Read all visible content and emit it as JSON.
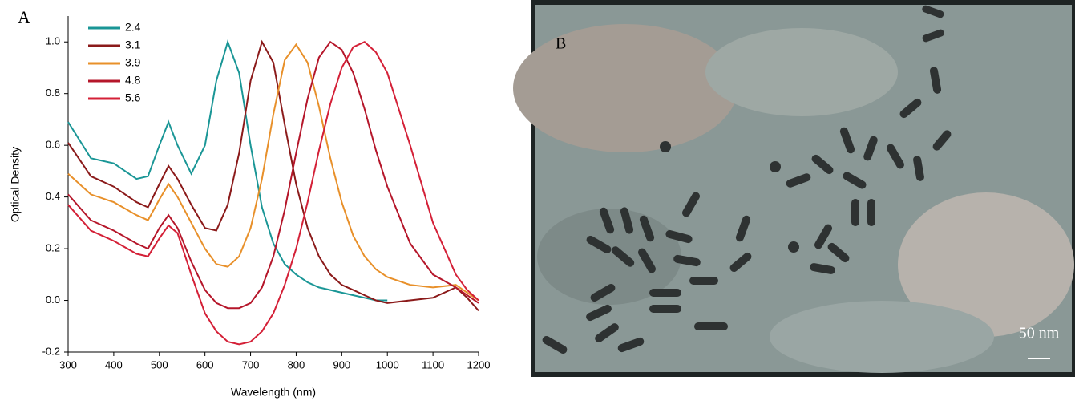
{
  "chart_data": {
    "type": "line",
    "panel_label": "A",
    "xlabel": "Wavelength (nm)",
    "ylabel": "Optical Density",
    "x": [
      300,
      350,
      400,
      450,
      475,
      500,
      520,
      540,
      570,
      600,
      625,
      650,
      675,
      700,
      725,
      750,
      775,
      800,
      825,
      850,
      875,
      900,
      925,
      950,
      975,
      1000,
      1050,
      1100,
      1150,
      1175,
      1200
    ],
    "series": [
      {
        "name": "2.4",
        "color": "#1a9696",
        "values": [
          0.69,
          0.55,
          0.53,
          0.47,
          0.48,
          0.6,
          0.69,
          0.6,
          0.49,
          0.6,
          0.85,
          1.0,
          0.88,
          0.6,
          0.36,
          0.22,
          0.14,
          0.1,
          0.07,
          0.05,
          0.04,
          0.03,
          0.02,
          0.01,
          0.0,
          0.0,
          null,
          null,
          null,
          null,
          null
        ]
      },
      {
        "name": "3.1",
        "color": "#8b1a1a",
        "values": [
          0.61,
          0.48,
          0.44,
          0.38,
          0.36,
          0.45,
          0.52,
          0.47,
          0.37,
          0.28,
          0.27,
          0.37,
          0.57,
          0.85,
          1.0,
          0.92,
          0.68,
          0.45,
          0.28,
          0.17,
          0.1,
          0.06,
          0.04,
          0.02,
          0.0,
          -0.01,
          0.0,
          0.01,
          0.05,
          0.01,
          -0.04
        ]
      },
      {
        "name": "3.9",
        "color": "#e8902a",
        "values": [
          0.49,
          0.41,
          0.38,
          0.33,
          0.31,
          0.39,
          0.45,
          0.4,
          0.3,
          0.2,
          0.14,
          0.13,
          0.17,
          0.28,
          0.47,
          0.72,
          0.93,
          0.99,
          0.92,
          0.75,
          0.55,
          0.38,
          0.25,
          0.17,
          0.12,
          0.09,
          0.06,
          0.05,
          0.06,
          0.03,
          0.0
        ]
      },
      {
        "name": "4.8",
        "color": "#b5162a",
        "values": [
          0.41,
          0.31,
          0.27,
          0.22,
          0.2,
          0.28,
          0.33,
          0.28,
          0.15,
          0.04,
          -0.01,
          -0.03,
          -0.03,
          -0.01,
          0.05,
          0.17,
          0.35,
          0.57,
          0.78,
          0.94,
          1.0,
          0.97,
          0.88,
          0.74,
          0.58,
          0.44,
          0.22,
          0.1,
          0.05,
          0.02,
          -0.01
        ]
      },
      {
        "name": "5.6",
        "color": "#d42037",
        "values": [
          0.37,
          0.27,
          0.23,
          0.18,
          0.17,
          0.24,
          0.29,
          0.26,
          0.1,
          -0.05,
          -0.12,
          -0.16,
          -0.17,
          -0.16,
          -0.12,
          -0.05,
          0.06,
          0.2,
          0.38,
          0.58,
          0.76,
          0.9,
          0.98,
          1.0,
          0.96,
          0.88,
          0.6,
          0.3,
          0.1,
          0.04,
          0.0
        ]
      }
    ],
    "xlim": [
      300,
      1200
    ],
    "xticks": [
      300,
      400,
      500,
      600,
      700,
      800,
      900,
      1000,
      1100,
      1200
    ],
    "ylim": [
      -0.2,
      1.1
    ],
    "yticks": [
      -0.2,
      {
        "value": 0,
        "label": "0.0"
      },
      0.2,
      0.4,
      0.6,
      0.8,
      {
        "value": 1,
        "label": "1.0"
      }
    ],
    "legend": "upper-left"
  },
  "image": {
    "panel_label": "B",
    "scale_bar": "50 nm"
  }
}
